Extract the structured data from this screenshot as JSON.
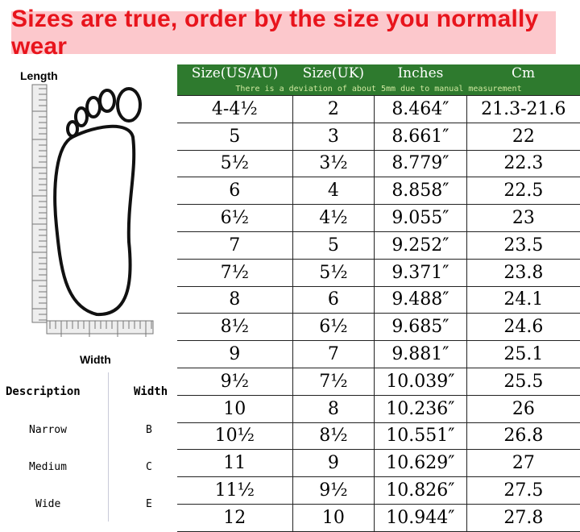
{
  "banner": {
    "text": "Sizes are true, order by the size you normally wear",
    "color": "#e8141c",
    "background": "#fcc8cc"
  },
  "diagram": {
    "length_label": "Length",
    "width_label": "Width"
  },
  "width_table": {
    "headers": [
      "Description",
      "Width"
    ],
    "rows": [
      [
        "Narrow",
        "B"
      ],
      [
        "Medium",
        "C"
      ],
      [
        "Wide",
        "E"
      ]
    ]
  },
  "size_table": {
    "header_color": "#2e7a2e",
    "headers": [
      "Size(US/AU)",
      "Size(UK)",
      "Inches",
      "Cm"
    ],
    "note": "There is a deviation of about 5mm due to manual measurement",
    "rows": [
      [
        "4-4½",
        "2",
        "8.464″",
        "21.3-21.6"
      ],
      [
        "5",
        "3",
        "8.661″",
        "22"
      ],
      [
        "5½",
        "3½",
        "8.779″",
        "22.3"
      ],
      [
        "6",
        "4",
        "8.858″",
        "22.5"
      ],
      [
        "6½",
        "4½",
        "9.055″",
        "23"
      ],
      [
        "7",
        "5",
        "9.252″",
        "23.5"
      ],
      [
        "7½",
        "5½",
        "9.371″",
        "23.8"
      ],
      [
        "8",
        "6",
        "9.488″",
        "24.1"
      ],
      [
        "8½",
        "6½",
        "9.685″",
        "24.6"
      ],
      [
        "9",
        "7",
        "9.881″",
        "25.1"
      ],
      [
        "9½",
        "7½",
        "10.039″",
        "25.5"
      ],
      [
        "10",
        "8",
        "10.236″",
        "26"
      ],
      [
        "10½",
        "8½",
        "10.551″",
        "26.8"
      ],
      [
        "11",
        "9",
        "10.629″",
        "27"
      ],
      [
        "11½",
        "9½",
        "10.826″",
        "27.5"
      ],
      [
        "12",
        "10",
        "10.944″",
        "27.8"
      ]
    ]
  }
}
